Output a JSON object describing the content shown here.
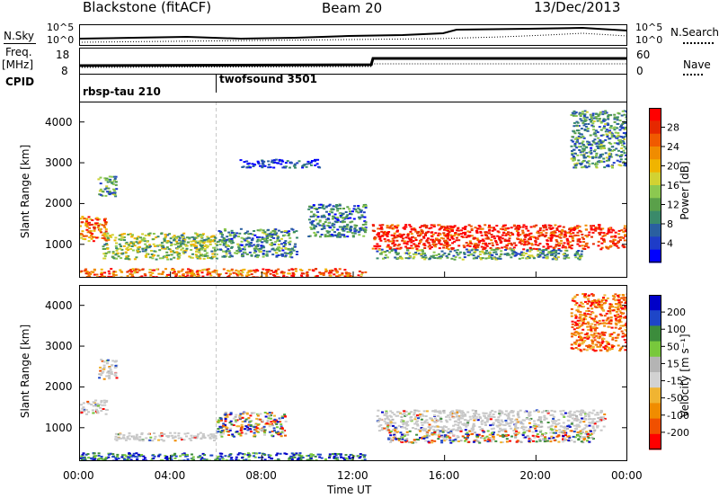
{
  "header": {
    "radar": "Blackstone (fitACF)",
    "beam": "Beam 20",
    "date": "13/Dec/2013"
  },
  "top_panels": {
    "nsky_label": "N.Sky",
    "nsky_left_ticks": [
      "10^5",
      "10^0"
    ],
    "nsearch_label": "N.Search",
    "nsearch_right_ticks": [
      "10^5",
      "10^0"
    ],
    "freq_label_1": "Freq.",
    "freq_label_2": "[MHz]",
    "freq_ticks": [
      "18",
      "8"
    ],
    "nave_label": "Nave",
    "nave_ticks": [
      "60",
      "0"
    ],
    "cpid_label": "CPID",
    "cpid_entries": [
      {
        "name": "rbsp-tau 210",
        "start_hour": 0
      },
      {
        "name": "twofsound 3501",
        "start_hour": 6
      }
    ]
  },
  "colors": {
    "power_scale": [
      "#0000ff",
      "#1e3cc8",
      "#2a5fa0",
      "#3a8a6a",
      "#5aa04a",
      "#8cc850",
      "#d2d232",
      "#f0b400",
      "#f08c00",
      "#f05a00",
      "#e62800",
      "#ff0000"
    ],
    "velocity_scale": [
      "#0000c8",
      "#1e46c8",
      "#3c8c3c",
      "#78c83c",
      "#b4b4b4",
      "#d2d2d2",
      "#f0b432",
      "#f08c00",
      "#f05000",
      "#ff0000"
    ],
    "ground_scatter": "#c8c8c8"
  },
  "chart_data": [
    {
      "type": "heatmap",
      "title": "",
      "parameter": "power",
      "xlabel": "",
      "ylabel": "Slant Range [km]",
      "x_unit": "hour UT",
      "xlim": [
        0,
        24
      ],
      "ylim": [
        180,
        4500
      ],
      "yticks": [
        "1000",
        "2000",
        "3000",
        "4000"
      ],
      "colorbar": {
        "label": "Power [dB]",
        "range": [
          0,
          32
        ],
        "ticks": [
          "4",
          "8",
          "12",
          "16",
          "20",
          "24",
          "28"
        ]
      },
      "regions": [
        {
          "t0": 0.0,
          "t1": 1.2,
          "r0": 1100,
          "r1": 1700,
          "level": 0.75
        },
        {
          "t0": 0.8,
          "t1": 1.6,
          "r0": 2200,
          "r1": 2700,
          "level": 0.35
        },
        {
          "t0": 1.0,
          "t1": 6.0,
          "r0": 650,
          "r1": 1300,
          "level": 0.45
        },
        {
          "t0": 6.0,
          "t1": 9.5,
          "r0": 700,
          "r1": 1400,
          "level": 0.3
        },
        {
          "t0": 7.0,
          "t1": 10.5,
          "r0": 2900,
          "r1": 3100,
          "level": 0.1
        },
        {
          "t0": 0.0,
          "t1": 12.5,
          "r0": 200,
          "r1": 420,
          "level": 0.8
        },
        {
          "t0": 10.0,
          "t1": 12.5,
          "r0": 1200,
          "r1": 2000,
          "level": 0.25
        },
        {
          "t0": 12.8,
          "t1": 23.9,
          "r0": 900,
          "r1": 1500,
          "level": 0.92
        },
        {
          "t0": 13.0,
          "t1": 22.0,
          "r0": 650,
          "r1": 900,
          "level": 0.35
        },
        {
          "t0": 21.5,
          "t1": 24.0,
          "r0": 2900,
          "r1": 4300,
          "level": 0.3
        }
      ]
    },
    {
      "type": "heatmap",
      "title": "",
      "parameter": "velocity",
      "xlabel": "Time UT",
      "ylabel": "Slant Range [km]",
      "x_unit": "hour UT",
      "xlim": [
        0,
        24
      ],
      "ylim": [
        180,
        4500
      ],
      "xticks": [
        "00:00",
        "04:00",
        "08:00",
        "12:00",
        "16:00",
        "20:00",
        "00:00"
      ],
      "yticks": [
        "1000",
        "2000",
        "3000",
        "4000"
      ],
      "colorbar": {
        "label": "Velocity [m s⁻¹]",
        "range": [
          -250,
          250
        ],
        "ticks": [
          "200",
          "100",
          "50",
          "15",
          "-15",
          "-50",
          "-100",
          "-200"
        ]
      },
      "regions": [
        {
          "t0": 0.0,
          "t1": 1.2,
          "r0": 1350,
          "r1": 1700,
          "kind": "ground"
        },
        {
          "t0": 0.8,
          "t1": 1.6,
          "r0": 2200,
          "r1": 2700,
          "kind": "ground"
        },
        {
          "t0": 1.5,
          "t1": 6.0,
          "r0": 700,
          "r1": 900,
          "kind": "ground"
        },
        {
          "t0": 6.0,
          "t1": 9.0,
          "r0": 800,
          "r1": 1400,
          "kind": "mixed"
        },
        {
          "t0": 0.0,
          "t1": 12.5,
          "r0": 200,
          "r1": 400,
          "kind": "positive"
        },
        {
          "t0": 13.0,
          "t1": 23.0,
          "r0": 950,
          "r1": 1450,
          "kind": "ground"
        },
        {
          "t0": 13.5,
          "t1": 22.5,
          "r0": 650,
          "r1": 950,
          "kind": "mixed"
        },
        {
          "t0": 21.5,
          "t1": 24.0,
          "r0": 2900,
          "r1": 4300,
          "kind": "negative"
        }
      ]
    }
  ]
}
